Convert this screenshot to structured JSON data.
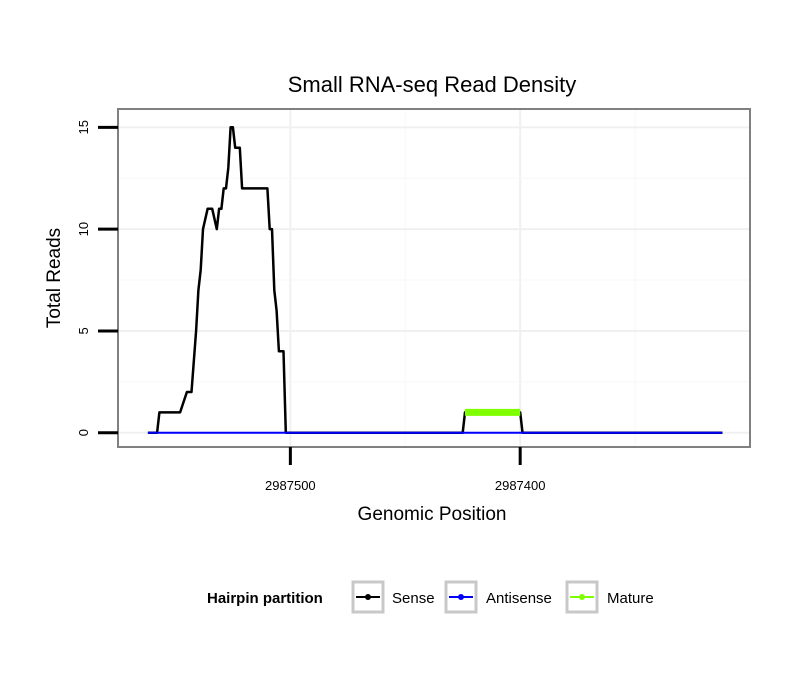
{
  "chart_data": {
    "type": "line",
    "title": "Small RNA-seq Read Density",
    "xlabel": "Genomic Position",
    "ylabel": "Total Reads",
    "x_reversed": true,
    "xlim": [
      2987575,
      2987300
    ],
    "ylim": [
      -0.7,
      15.9
    ],
    "x_ticks": [
      2987500,
      2987400
    ],
    "x_tick_labels": [
      "2987500",
      "2987400"
    ],
    "y_ticks": [
      0,
      5,
      10,
      15
    ],
    "y_tick_labels": [
      "0",
      "5",
      "10",
      "15"
    ],
    "grid": true,
    "legend": {
      "title": "Hairpin partition",
      "position": "bottom",
      "entries": [
        "Sense",
        "Antisense",
        "Mature"
      ]
    },
    "series": [
      {
        "name": "Sense",
        "color": "#000000",
        "x": [
          2987562,
          2987558,
          2987557,
          2987549,
          2987548,
          2987545,
          2987544,
          2987543,
          2987541,
          2987540,
          2987539,
          2987538,
          2987536,
          2987535,
          2987534,
          2987532,
          2987531,
          2987530,
          2987529,
          2987528,
          2987527,
          2987526,
          2987525,
          2987524,
          2987522,
          2987521,
          2987518,
          2987517,
          2987516,
          2987510,
          2987509,
          2987508,
          2987507,
          2987506,
          2987505,
          2987504,
          2987503,
          2987502,
          2987425,
          2987424,
          2987400,
          2987399,
          2987312
        ],
        "y": [
          0,
          0,
          1,
          1,
          1,
          2,
          2,
          2,
          5,
          7,
          8,
          10,
          11,
          11,
          11,
          10,
          11,
          11,
          12,
          12,
          13,
          15,
          15,
          14,
          14,
          12,
          12,
          12,
          12,
          12,
          10,
          10,
          7,
          6,
          4,
          4,
          4,
          0,
          0,
          1,
          1,
          0,
          0
        ]
      },
      {
        "name": "Antisense",
        "color": "#0000ff",
        "x": [
          2987562,
          2987312
        ],
        "y": [
          0,
          0
        ]
      },
      {
        "name": "Mature",
        "color": "#7fff00",
        "x": [
          2987424,
          2987400
        ],
        "y": [
          1,
          1
        ]
      }
    ]
  }
}
